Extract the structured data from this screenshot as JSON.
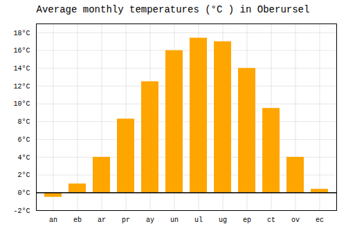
{
  "chart_data": {
    "type": "bar",
    "title": "Average monthly temperatures (°C ) in Oberursel",
    "categories": [
      "an",
      "eb",
      "ar",
      "pr",
      "ay",
      "un",
      "ul",
      "ug",
      "ep",
      "ct",
      "ov",
      "ec"
    ],
    "values": [
      -0.5,
      1.0,
      4.0,
      8.3,
      12.5,
      16.0,
      17.4,
      17.0,
      14.0,
      9.5,
      4.0,
      0.4
    ],
    "color": "#FFA500",
    "ylim": [
      -2,
      19
    ],
    "yticks": [
      {
        "value": -2,
        "label": "-2°C"
      },
      {
        "value": 0,
        "label": "0°C"
      },
      {
        "value": 2,
        "label": "2°C"
      },
      {
        "value": 4,
        "label": "4°C"
      },
      {
        "value": 6,
        "label": "6°C"
      },
      {
        "value": 8,
        "label": "8°C"
      },
      {
        "value": 10,
        "label": "10°C"
      },
      {
        "value": 12,
        "label": "12°C"
      },
      {
        "value": 14,
        "label": "14°C"
      },
      {
        "value": 16,
        "label": "16°C"
      },
      {
        "value": 18,
        "label": "18°C"
      }
    ],
    "grid": true
  }
}
